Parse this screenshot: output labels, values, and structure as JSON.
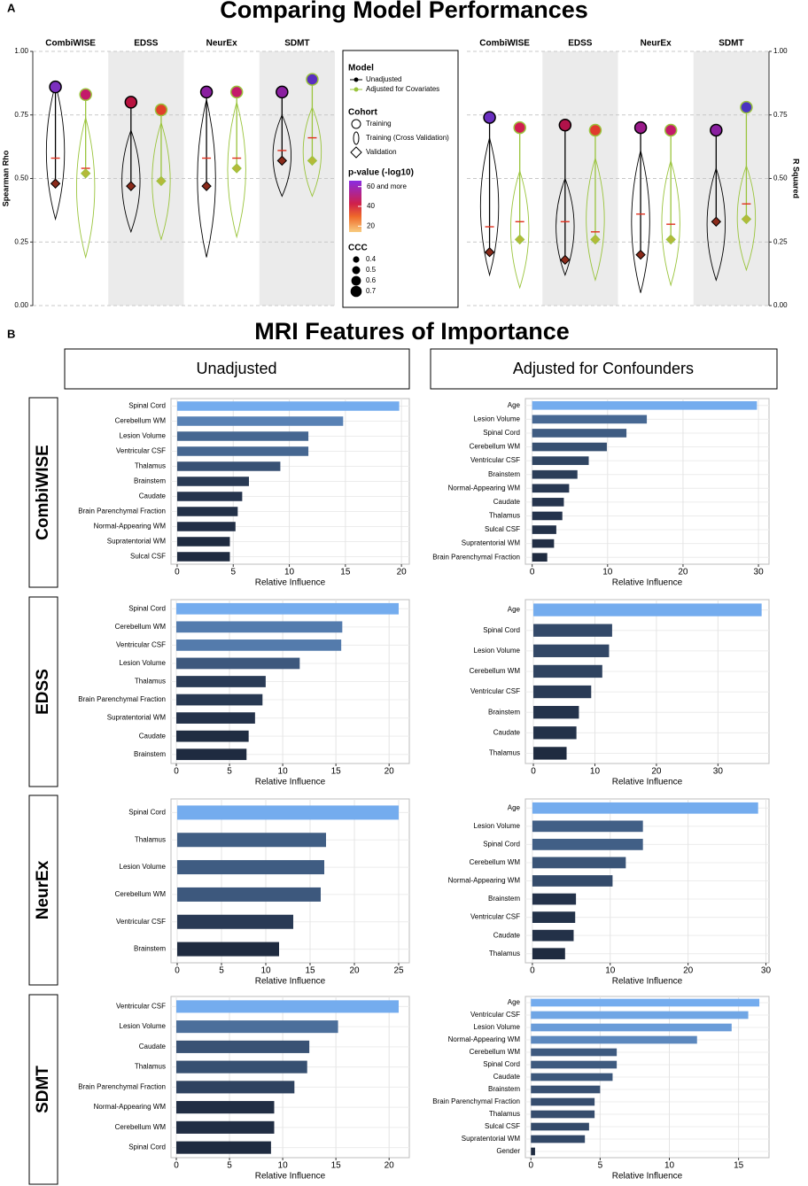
{
  "panel_a": {
    "letter": "A",
    "title": "Comparing Model Performances"
  },
  "panel_b": {
    "letter": "B",
    "title": "MRI Features of Importance",
    "columns": [
      "Unadjusted",
      "Adjusted for Confounders"
    ],
    "rows": [
      "CombiWISE",
      "EDSS",
      "NeurEx",
      "SDMT"
    ]
  },
  "legend": {
    "model_title": "Model",
    "model_entries": [
      "Unadjusted",
      "Adjusted for Covariates"
    ],
    "cohort_title": "Cohort",
    "cohort_entries": [
      "Training",
      "Training (Cross Validation)",
      "Validation"
    ],
    "pvalue_title": "p-value (-log10)",
    "pvalue_lim": [
      14,
      66
    ],
    "pvalue_ticks": [
      {
        "value": 60,
        "label": "60 and more"
      },
      40,
      20
    ],
    "ccc_title": "CCC",
    "ccc_values": [
      0.4,
      0.5,
      0.6,
      0.7
    ]
  },
  "chart_data": [
    {
      "type": "violin",
      "y_label": "Spearman Rho",
      "axis_side": "left",
      "ylim": [
        0,
        1
      ],
      "yticks": [
        {
          "value": 0,
          "label": "0.00"
        },
        {
          "value": 0.25,
          "label": "0.25"
        },
        {
          "value": 0.5,
          "label": "0.50"
        },
        {
          "value": 0.75,
          "label": "0.75"
        },
        {
          "value": 1,
          "label": "1.00"
        }
      ],
      "facets": [
        "CombiWISE",
        "EDSS",
        "NeurEx",
        "SDMT"
      ],
      "series": [
        {
          "name": "Unadjusted",
          "color": "#000000",
          "validation_color": "#8a2a1a",
          "training": [
            0.86,
            0.8,
            0.84,
            0.84
          ],
          "mean": [
            0.58,
            0.47,
            0.58,
            0.61
          ],
          "validation": [
            0.48,
            0.47,
            0.47,
            0.57
          ],
          "min": [
            0.34,
            0.29,
            0.19,
            0.43
          ],
          "max": [
            0.87,
            0.69,
            0.81,
            0.75
          ],
          "training_colors": [
            "#7b2fbf",
            "#b8123f",
            "#8a1fa0",
            "#8a1fa0"
          ]
        },
        {
          "name": "Adjusted for Covariates",
          "color": "#9ac43c",
          "validation_color": "#b5b83a",
          "training": [
            0.83,
            0.77,
            0.84,
            0.89
          ],
          "mean": [
            0.54,
            0.49,
            0.58,
            0.66
          ],
          "validation": [
            0.52,
            0.49,
            0.54,
            0.57
          ],
          "min": [
            0.19,
            0.26,
            0.27,
            0.43
          ],
          "max": [
            0.74,
            0.72,
            0.8,
            0.78
          ],
          "training_colors": [
            "#c41a6a",
            "#e0402a",
            "#c41a6a",
            "#5a2fbf"
          ]
        }
      ]
    },
    {
      "type": "violin",
      "y_label": "R Squared",
      "axis_side": "right",
      "ylim": [
        0,
        1
      ],
      "yticks": [
        {
          "value": 0,
          "label": "0.00"
        },
        {
          "value": 0.25,
          "label": "0.25"
        },
        {
          "value": 0.5,
          "label": "0.50"
        },
        {
          "value": 0.75,
          "label": "0.75"
        },
        {
          "value": 1,
          "label": "1.00"
        }
      ],
      "facets": [
        "CombiWISE",
        "EDSS",
        "NeurEx",
        "SDMT"
      ],
      "series": [
        {
          "name": "Unadjusted",
          "color": "#000000",
          "validation_color": "#8a2a1a",
          "training": [
            0.74,
            0.71,
            0.7,
            0.69
          ],
          "mean": [
            0.31,
            0.33,
            0.36,
            0.33
          ],
          "validation": [
            0.21,
            0.18,
            0.2,
            0.33
          ],
          "min": [
            0.12,
            0.12,
            0.05,
            0.1
          ],
          "max": [
            0.66,
            0.5,
            0.61,
            0.54
          ],
          "training_colors": [
            "#6a2fc0",
            "#b0124a",
            "#9a1a8a",
            "#8a1fa0"
          ]
        },
        {
          "name": "Adjusted for Covariates",
          "color": "#9ac43c",
          "validation_color": "#b5b83a",
          "training": [
            0.7,
            0.69,
            0.69,
            0.78
          ],
          "mean": [
            0.33,
            0.29,
            0.32,
            0.4
          ],
          "validation": [
            0.26,
            0.26,
            0.26,
            0.34
          ],
          "min": [
            0.07,
            0.1,
            0.08,
            0.14
          ],
          "max": [
            0.53,
            0.58,
            0.57,
            0.55
          ],
          "training_colors": [
            "#d01e50",
            "#e03a2e",
            "#c41a6a",
            "#4a34c0"
          ]
        }
      ]
    },
    {
      "type": "bar",
      "x_label": "Relative Influence",
      "color_scale": [
        "#1f2b40",
        "#74acee"
      ],
      "xlim": [
        -0.55,
        20.7
      ],
      "xticks": [
        0,
        5,
        10,
        15,
        20
      ],
      "categories": [
        "Spinal Cord",
        "Cerebellum WM",
        "Lesion Volume",
        "Ventricular CSF",
        "Thalamus",
        "Brainstem",
        "Caudate",
        "Brain Parenchymal Fraction",
        "Normal-Appearing WM",
        "Supratentorial WM",
        "Sulcal CSF"
      ],
      "values": [
        19.8,
        14.8,
        11.7,
        11.7,
        9.2,
        6.4,
        5.8,
        5.4,
        5.2,
        4.7,
        4.7
      ]
    },
    {
      "type": "bar",
      "x_label": "Relative Influence",
      "color_scale": [
        "#1f2b40",
        "#74acee"
      ],
      "xlim": [
        -0.9,
        31.4
      ],
      "xticks": [
        0,
        10,
        20,
        30
      ],
      "categories": [
        "Age",
        "Lesion Volume",
        "Spinal Cord",
        "Cerebellum WM",
        "Ventricular CSF",
        "Brainstem",
        "Normal-Appearing WM",
        "Caudate",
        "Thalamus",
        "Sulcal CSF",
        "Supratentorial WM",
        "Brain Parenchymal Fraction"
      ],
      "values": [
        29.8,
        15.2,
        12.5,
        9.9,
        7.5,
        6.0,
        4.9,
        4.2,
        4.0,
        3.2,
        2.9,
        2.0
      ]
    },
    {
      "type": "bar",
      "x_label": "Relative Influence",
      "color_scale": [
        "#1f2b40",
        "#74acee"
      ],
      "xlim": [
        -0.5,
        21.9
      ],
      "xticks": [
        0,
        5,
        10,
        15,
        20
      ],
      "categories": [
        "Spinal Cord",
        "Cerebellum WM",
        "Ventricular CSF",
        "Lesion Volume",
        "Thalamus",
        "Brain Parenchymal Fraction",
        "Supratentorial WM",
        "Caudate",
        "Brainstem"
      ],
      "values": [
        20.9,
        15.6,
        15.5,
        11.6,
        8.4,
        8.1,
        7.4,
        6.8,
        6.6
      ]
    },
    {
      "type": "bar",
      "x_label": "Relative Influence",
      "color_scale": [
        "#1f2b40",
        "#74acee"
      ],
      "xlim": [
        -1.3,
        38.3
      ],
      "xticks": [
        0,
        10,
        20,
        30
      ],
      "categories": [
        "Age",
        "Spinal Cord",
        "Lesion Volume",
        "Cerebellum WM",
        "Ventricular CSF",
        "Brainstem",
        "Caudate",
        "Thalamus"
      ],
      "values": [
        37.1,
        12.8,
        12.3,
        11.2,
        9.4,
        7.4,
        7.0,
        5.4
      ]
    },
    {
      "type": "bar",
      "x_label": "Relative Influence",
      "color_scale": [
        "#1f2b40",
        "#74acee"
      ],
      "xlim": [
        -0.7,
        26.2
      ],
      "xticks": [
        0,
        5,
        10,
        15,
        20,
        25
      ],
      "categories": [
        "Spinal Cord",
        "Thalamus",
        "Lesion Volume",
        "Cerebellum WM",
        "Ventricular CSF",
        "Brainstem"
      ],
      "values": [
        25.0,
        16.8,
        16.6,
        16.2,
        13.1,
        11.5
      ]
    },
    {
      "type": "bar",
      "x_label": "Relative Influence",
      "color_scale": [
        "#1f2b40",
        "#74acee"
      ],
      "xlim": [
        -0.9,
        30.4
      ],
      "xticks": [
        0,
        10,
        20,
        30
      ],
      "categories": [
        "Age",
        "Lesion Volume",
        "Spinal Cord",
        "Cerebellum WM",
        "Normal-Appearing WM",
        "Brainstem",
        "Ventricular CSF",
        "Caudate",
        "Thalamus"
      ],
      "values": [
        29.0,
        14.2,
        14.2,
        12.0,
        10.3,
        5.6,
        5.5,
        5.3,
        4.2
      ]
    },
    {
      "type": "bar",
      "x_label": "Relative Influence",
      "color_scale": [
        "#1f2b40",
        "#74acee"
      ],
      "xlim": [
        -0.5,
        21.9
      ],
      "xticks": [
        0,
        5,
        10,
        15,
        20
      ],
      "categories": [
        "Ventricular CSF",
        "Lesion Volume",
        "Caudate",
        "Thalamus",
        "Brain Parenchymal Fraction",
        "Normal-Appearing WM",
        "Cerebellum WM",
        "Spinal Cord"
      ],
      "values": [
        20.9,
        15.2,
        12.5,
        12.3,
        11.1,
        9.2,
        9.2,
        8.9
      ]
    },
    {
      "type": "bar",
      "x_label": "Relative Influence",
      "color_scale": [
        "#1f2b40",
        "#74acee"
      ],
      "xlim": [
        -0.4,
        17.2
      ],
      "xticks": [
        0,
        5,
        10,
        15
      ],
      "categories": [
        "Age",
        "Ventricular CSF",
        "Lesion Volume",
        "Normal-Appearing WM",
        "Cerebellum WM",
        "Spinal Cord",
        "Caudate",
        "Brainstem",
        "Brain Parenchymal Fraction",
        "Thalamus",
        "Sulcal CSF",
        "Supratentorial WM",
        "Gender"
      ],
      "values": [
        16.5,
        15.7,
        14.5,
        12.0,
        6.2,
        6.2,
        5.9,
        5.0,
        4.6,
        4.6,
        4.2,
        3.9,
        0.3
      ]
    }
  ]
}
